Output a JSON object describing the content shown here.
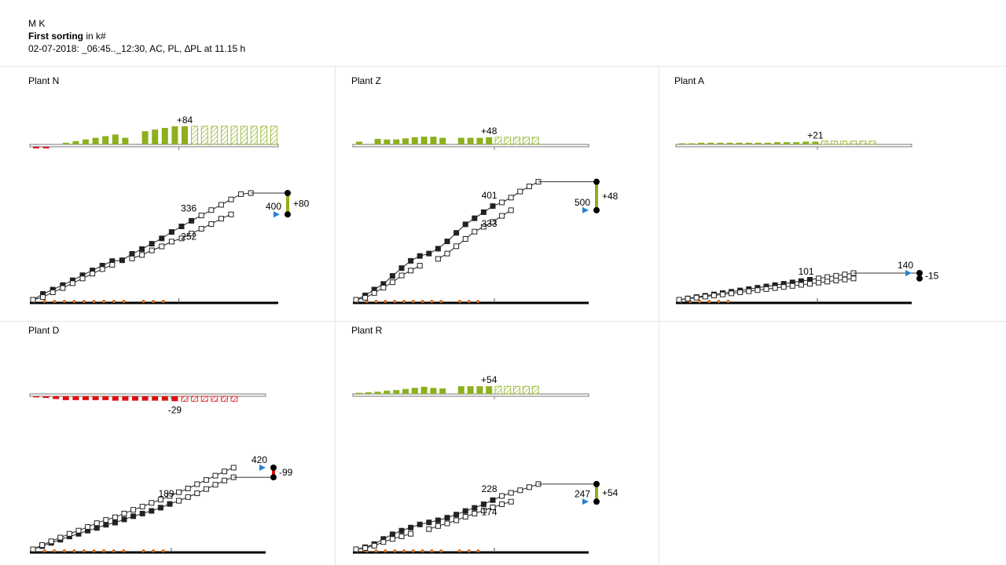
{
  "header": {
    "user": "M K",
    "title_bold": "First sorting",
    "title_rest": "in k#",
    "subtitle": "02-07-2018:  _06:45.._12:30,  AC,  PL,  ∆PL at 11.15 h"
  },
  "colors": {
    "ac_line": "#222222",
    "pl_marker_fill": "#ffffff",
    "positive_bar": "#8cb01e",
    "negative_bar": "#e01010",
    "event_dot": "#e07020",
    "target_arrow": "#2a7fd4",
    "separator": "#e6e6e6"
  },
  "chart_data": [
    {
      "type": "bar+line",
      "panel": "Plant N",
      "title": "Plant N",
      "delta_label": "+84",
      "delta_bars": [
        -3,
        -3,
        null,
        3,
        6,
        9,
        12,
        15,
        18,
        12,
        null,
        24,
        27,
        30,
        33,
        33,
        33,
        33,
        33,
        33,
        33,
        33,
        33,
        33,
        33
      ],
      "delta_bar_forecast_from": 16,
      "ac_series": [
        0,
        22,
        38,
        55,
        73,
        92,
        110,
        128,
        145,
        148,
        172,
        190,
        210,
        230,
        254,
        275,
        296,
        316,
        336,
        356,
        376,
        396,
        400
      ],
      "pl_series": [
        0,
        10,
        28,
        44,
        62,
        80,
        98,
        115,
        131,
        null,
        155,
        168,
        185,
        200,
        218,
        230,
        248,
        266,
        284,
        304,
        320
      ],
      "ac_label": "336",
      "pl_label": "252",
      "target_value": "400",
      "target_delta": "+80",
      "target_delta_positive": true,
      "event_count": 14
    },
    {
      "type": "bar+line",
      "panel": "Plant Z",
      "title": "Plant Z",
      "delta_label": "+48",
      "delta_bars": [
        5,
        null,
        10,
        9,
        9,
        11,
        13,
        14,
        14,
        12,
        null,
        12,
        12,
        12,
        13,
        13,
        13,
        13,
        13,
        13
      ],
      "delta_bar_forecast_from": 15,
      "ac_series": [
        0,
        18,
        42,
        65,
        98,
        130,
        160,
        180,
        190,
        210,
        240,
        275,
        310,
        335,
        360,
        385,
        400,
        420,
        445,
        466,
        485
      ],
      "pl_series": [
        0,
        8,
        28,
        50,
        72,
        100,
        120,
        140,
        null,
        168,
        190,
        220,
        250,
        280,
        300,
        320,
        345,
        368
      ],
      "ac_label": "401",
      "pl_label": "333",
      "target_value": "500",
      "target_delta": "+48",
      "target_delta_positive": true,
      "event_count": 14
    },
    {
      "type": "bar+line",
      "panel": "Plant A",
      "title": "Plant A",
      "delta_label": "+21",
      "delta_bars": [
        2,
        2,
        3,
        3,
        3,
        3,
        3,
        3,
        3,
        3,
        4,
        4,
        4,
        5,
        5,
        6,
        6,
        6,
        6,
        6,
        6
      ],
      "delta_bar_forecast_from": 15,
      "ac_series": [
        0,
        5,
        10,
        15,
        20,
        25,
        30,
        35,
        40,
        45,
        50,
        55,
        60,
        65,
        70,
        75,
        80,
        85,
        90,
        95,
        100
      ],
      "pl_series": [
        0,
        4,
        8,
        12,
        16,
        20,
        24,
        28,
        32,
        36,
        40,
        44,
        48,
        52,
        56,
        60,
        64,
        68,
        72,
        76,
        80
      ],
      "ac_label": "101",
      "pl_label": "",
      "target_value": "140",
      "target_delta": "-15",
      "target_delta_positive": false,
      "event_count": 6
    },
    {
      "type": "bar+line",
      "panel": "Plant D",
      "title": "Plant D",
      "delta_label": "-29",
      "delta_bars": [
        -2,
        -3,
        -5,
        -7,
        -7,
        -7,
        -7,
        -7,
        -8,
        -8,
        -8,
        -8,
        -8,
        -8,
        -9,
        -9,
        -9,
        -9,
        -9,
        -9,
        -9
      ],
      "delta_bar_forecast_from": 15,
      "ac_series": [
        0,
        12,
        24,
        36,
        48,
        58,
        70,
        80,
        92,
        100,
        112,
        124,
        134,
        144,
        156,
        170,
        182,
        196,
        210,
        226,
        242,
        258,
        270
      ],
      "pl_series": [
        0,
        16,
        30,
        44,
        58,
        70,
        84,
        98,
        110,
        120,
        134,
        148,
        160,
        174,
        186,
        200,
        214,
        228,
        244,
        260,
        276,
        292,
        306
      ],
      "ac_label": "189",
      "pl_label": "",
      "target_value": "420",
      "target_delta": "-99",
      "target_delta_positive": false,
      "event_count": 14
    },
    {
      "type": "bar+line",
      "panel": "Plant R",
      "title": "Plant R",
      "delta_label": "+54",
      "delta_bars": [
        2,
        3,
        4,
        6,
        7,
        9,
        11,
        13,
        11,
        10,
        null,
        14,
        14,
        14,
        14,
        14,
        14,
        14,
        14,
        14
      ],
      "delta_bar_forecast_from": 15,
      "ac_series": [
        0,
        8,
        20,
        40,
        58,
        72,
        84,
        96,
        104,
        112,
        122,
        134,
        148,
        160,
        174,
        190,
        206,
        218,
        228,
        240,
        252
      ],
      "pl_series": [
        0,
        5,
        14,
        28,
        40,
        50,
        60,
        null,
        78,
        90,
        100,
        112,
        126,
        138,
        150,
        162,
        174,
        184
      ],
      "ac_label": "228",
      "pl_label": "174",
      "target_value": "247",
      "target_delta": "+54",
      "target_delta_positive": true,
      "event_count": 14
    }
  ]
}
